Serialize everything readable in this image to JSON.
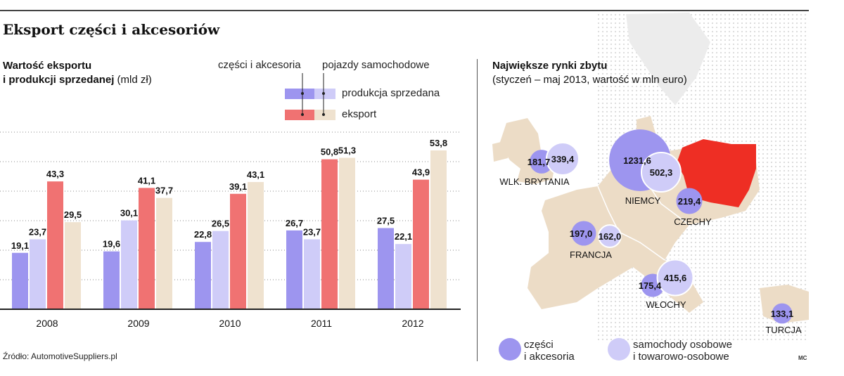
{
  "title": "Eksport części i akcesoriów",
  "left_chart": {
    "title_bold_1": "Wartość eksportu",
    "title_bold_2": "i produkcji sprzedanej",
    "title_unit": "(mld zł)",
    "legend": {
      "col1": "części i akcesoria",
      "col2": "pojazdy samochodowe",
      "row1": "produkcja sprzedana",
      "row2": "eksport"
    }
  },
  "right_map": {
    "title": "Największe rynki zbytu",
    "subtitle": "(styczeń – maj 2013, wartość w mln euro)",
    "legend_parts_1": "części",
    "legend_parts_2": "i akcesoria",
    "legend_cars_1": "samochody osobowe",
    "legend_cars_2": "i towarowo-osobowe"
  },
  "source": "Źródło: AutomotiveSuppliers.pl",
  "credit": "MC",
  "colors": {
    "parts_production": "#9d95ef",
    "cars_production": "#cfccf8",
    "parts_export": "#f07272",
    "cars_export": "#efe2cf",
    "map_land": "#ecdcc6",
    "map_sea_dots": "#d9d9d9",
    "poland": "#ee2e24",
    "axis": "#222222"
  },
  "chart_data": [
    {
      "type": "bar",
      "title": "Wartość eksportu i produkcji sprzedanej",
      "unit": "mld zł",
      "categories": [
        "2008",
        "2009",
        "2010",
        "2011",
        "2012"
      ],
      "series": [
        {
          "name": "części i akcesoria – produkcja sprzedana",
          "label": "19,1|19,6|22,8|26,7|27,5",
          "values": [
            19.1,
            19.6,
            22.8,
            26.7,
            27.5
          ],
          "color": "#9d95ef"
        },
        {
          "name": "pojazdy samochodowe – produkcja sprzedana",
          "label": "23,7|30,1|26,5|23,7|22,1",
          "values": [
            23.7,
            30.1,
            26.5,
            23.7,
            22.1
          ],
          "color": "#cfccf8"
        },
        {
          "name": "części i akcesoria – eksport",
          "label": "43,3|41,1|39,1|50,8|43,9",
          "values": [
            43.3,
            41.1,
            39.1,
            50.8,
            43.9
          ],
          "color": "#f07272"
        },
        {
          "name": "pojazdy samochodowe – eksport",
          "label": "29,5|37,7|43,1|51,3|53,8",
          "values": [
            29.5,
            37.7,
            43.1,
            51.3,
            53.8
          ],
          "color": "#efe2cf"
        }
      ],
      "ylim": [
        0,
        60
      ],
      "grid": true,
      "labels_text": [
        [
          "19,1",
          "23,7",
          "43,3",
          "29,5"
        ],
        [
          "19,6",
          "30,1",
          "41,1",
          "37,7"
        ],
        [
          "22,8",
          "26,5",
          "39,1",
          "43,1"
        ],
        [
          "26,7",
          "23,7",
          "50,8",
          "51,3"
        ],
        [
          "27,5",
          "22,1",
          "43,9",
          "53,8"
        ]
      ]
    },
    {
      "type": "bubble-map",
      "title": "Największe rynki zbytu",
      "unit": "mln euro",
      "markets": [
        {
          "country": "WLK. BRYTANIA",
          "parts": 181.7,
          "cars": 339.4,
          "parts_label": "181,7",
          "cars_label": "339,4"
        },
        {
          "country": "NIEMCY",
          "parts": 1231.6,
          "cars": 502.3,
          "parts_label": "1231,6",
          "cars_label": "502,3"
        },
        {
          "country": "CZECHY",
          "parts": 219.4,
          "cars": null,
          "parts_label": "219,4",
          "cars_label": ""
        },
        {
          "country": "FRANCJA",
          "parts": 197.0,
          "cars": 162.0,
          "parts_label": "197,0",
          "cars_label": "162,0"
        },
        {
          "country": "WŁOCHY",
          "parts": 175.4,
          "cars": 415.6,
          "parts_label": "175,4",
          "cars_label": "415,6"
        },
        {
          "country": "TURCJA",
          "parts": 133.1,
          "cars": null,
          "parts_label": "133,1",
          "cars_label": ""
        }
      ]
    }
  ]
}
